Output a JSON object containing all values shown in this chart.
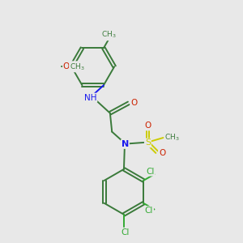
{
  "bg_color": "#e8e8e8",
  "bond_color": "#3a7a3a",
  "N_color": "#1a1aee",
  "O_color": "#cc2200",
  "S_color": "#cccc00",
  "Cl_color": "#33aa33",
  "line_width": 1.4,
  "figsize": [
    3.0,
    3.0
  ],
  "dpi": 100,
  "xlim": [
    0,
    10
  ],
  "ylim": [
    0,
    10
  ]
}
